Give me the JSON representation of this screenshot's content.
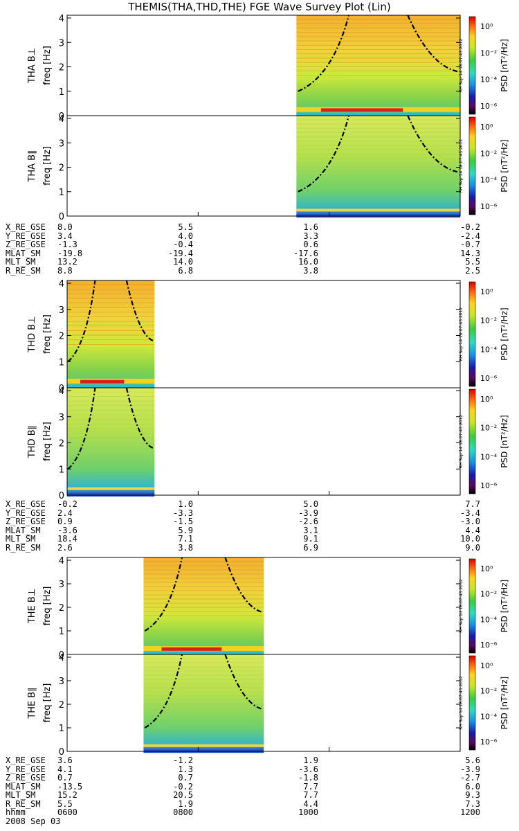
{
  "title": "THEMIS(THA,THD,THE) FGE Wave Survey Plot (Lin)",
  "stamp": "RH Sep 14 18:07:43 2012",
  "chart_data": {
    "type": "heatmap",
    "ylabel": "freq [Hz]",
    "ylim": [
      0,
      4
    ],
    "yticks": [
      "0",
      "1",
      "2",
      "3",
      "4"
    ],
    "colorbar": {
      "label": "PSD [nT²/Hz]",
      "scale": "log",
      "ticks": [
        "10⁰",
        "10⁻²",
        "10⁻⁴",
        "10⁻⁶"
      ]
    },
    "xaxis": {
      "label": "hhmm",
      "date": "2008 Sep 03",
      "ticks": [
        "0600",
        "0800",
        "1000",
        "1200"
      ]
    },
    "panels": [
      {
        "probe": "THA",
        "label": "THA B⊥",
        "data_span": [
          "0930",
          "1200"
        ]
      },
      {
        "probe": "THA",
        "label": "THA B∥",
        "data_span": [
          "0930",
          "1200"
        ]
      },
      {
        "probe": "THD",
        "label": "THD B⊥",
        "data_span": [
          "0600",
          "0720"
        ]
      },
      {
        "probe": "THD",
        "label": "THD B∥",
        "data_span": [
          "0600",
          "0720"
        ]
      },
      {
        "probe": "THE",
        "label": "THE B⊥",
        "data_span": [
          "0710",
          "0900"
        ]
      },
      {
        "probe": "THE",
        "label": "THE B∥",
        "data_span": [
          "0710",
          "0900"
        ]
      }
    ]
  },
  "ephemeris": {
    "labels": [
      "X_RE_GSE",
      "Y_RE_GSE",
      "Z_RE_GSE",
      "MLAT_SM",
      "MLT_SM",
      "R_RE_SM"
    ],
    "THA": [
      [
        "8.0",
        "5.5",
        "1.6",
        "-0.2"
      ],
      [
        "3.4",
        "4.0",
        "3.3",
        "-2.4"
      ],
      [
        "-1.3",
        "-0.4",
        "0.6",
        "-0.7"
      ],
      [
        "-19.8",
        "-19.4",
        "-17.6",
        "14.3"
      ],
      [
        "13.2",
        "14.0",
        "16.0",
        "5.5"
      ],
      [
        "8.8",
        "6.8",
        "3.8",
        "2.5"
      ]
    ],
    "THD": [
      [
        "-0.2",
        "1.0",
        "5.0",
        "7.7"
      ],
      [
        "2.4",
        "-3.3",
        "-3.9",
        "-3.4"
      ],
      [
        "0.9",
        "-1.5",
        "-2.6",
        "-3.0"
      ],
      [
        "-3.6",
        "5.9",
        "3.1",
        "4.4"
      ],
      [
        "18.4",
        "7.1",
        "9.1",
        "10.0"
      ],
      [
        "2.6",
        "3.8",
        "6.9",
        "9.0"
      ]
    ],
    "THE": [
      [
        "3.6",
        "-1.2",
        "1.9",
        "5.6"
      ],
      [
        "4.1",
        "1.3",
        "-3.6",
        "-3.9"
      ],
      [
        "0.7",
        "0.7",
        "-1.8",
        "-2.7"
      ],
      [
        "-13.5",
        "-0.2",
        "7.7",
        "6.0"
      ],
      [
        "15.2",
        "20.5",
        "7.7",
        "9.3"
      ],
      [
        "5.5",
        "1.9",
        "4.4",
        "7.3"
      ]
    ]
  }
}
